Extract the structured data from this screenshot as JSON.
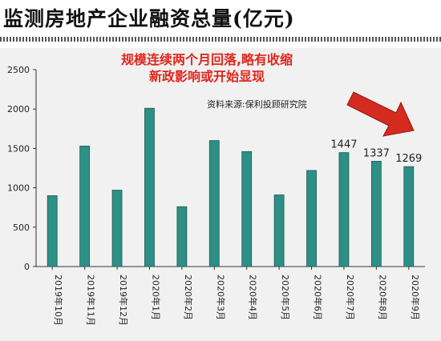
{
  "title": "监测房地产企业融资总量(亿元)",
  "annotation": {
    "line1": "规模连续两个月回落,略有收缩",
    "line2": "新政影响或开始显现",
    "color": "#e1251b"
  },
  "source": "资料来源:保利投顾研究院",
  "arrow_color": "#d42a1f",
  "bar_color": "#2d8f86",
  "bar_edge": "#1c5e58",
  "chart_data": {
    "type": "bar",
    "title": "监测房地产企业融资总量(亿元)",
    "xlabel": "",
    "ylabel": "",
    "ylim": [
      0,
      2500
    ],
    "yticks": [
      "0",
      "500",
      "1000",
      "1500",
      "2000",
      "2500"
    ],
    "grid": false,
    "categories": [
      "2019年10月",
      "2019年11月",
      "2019年12月",
      "2020年1月",
      "2020年2月",
      "2020年3月",
      "2020年4月",
      "2020年5月",
      "2020年6月",
      "2020年7月",
      "2020年8月",
      "2020年9月"
    ],
    "values": [
      900,
      1530,
      970,
      2010,
      760,
      1600,
      1460,
      910,
      1220,
      1447,
      1337,
      1269
    ],
    "data_labels": [
      "",
      "",
      "",
      "",
      "",
      "",
      "",
      "",
      "",
      "1447",
      "1337",
      "1269"
    ]
  }
}
